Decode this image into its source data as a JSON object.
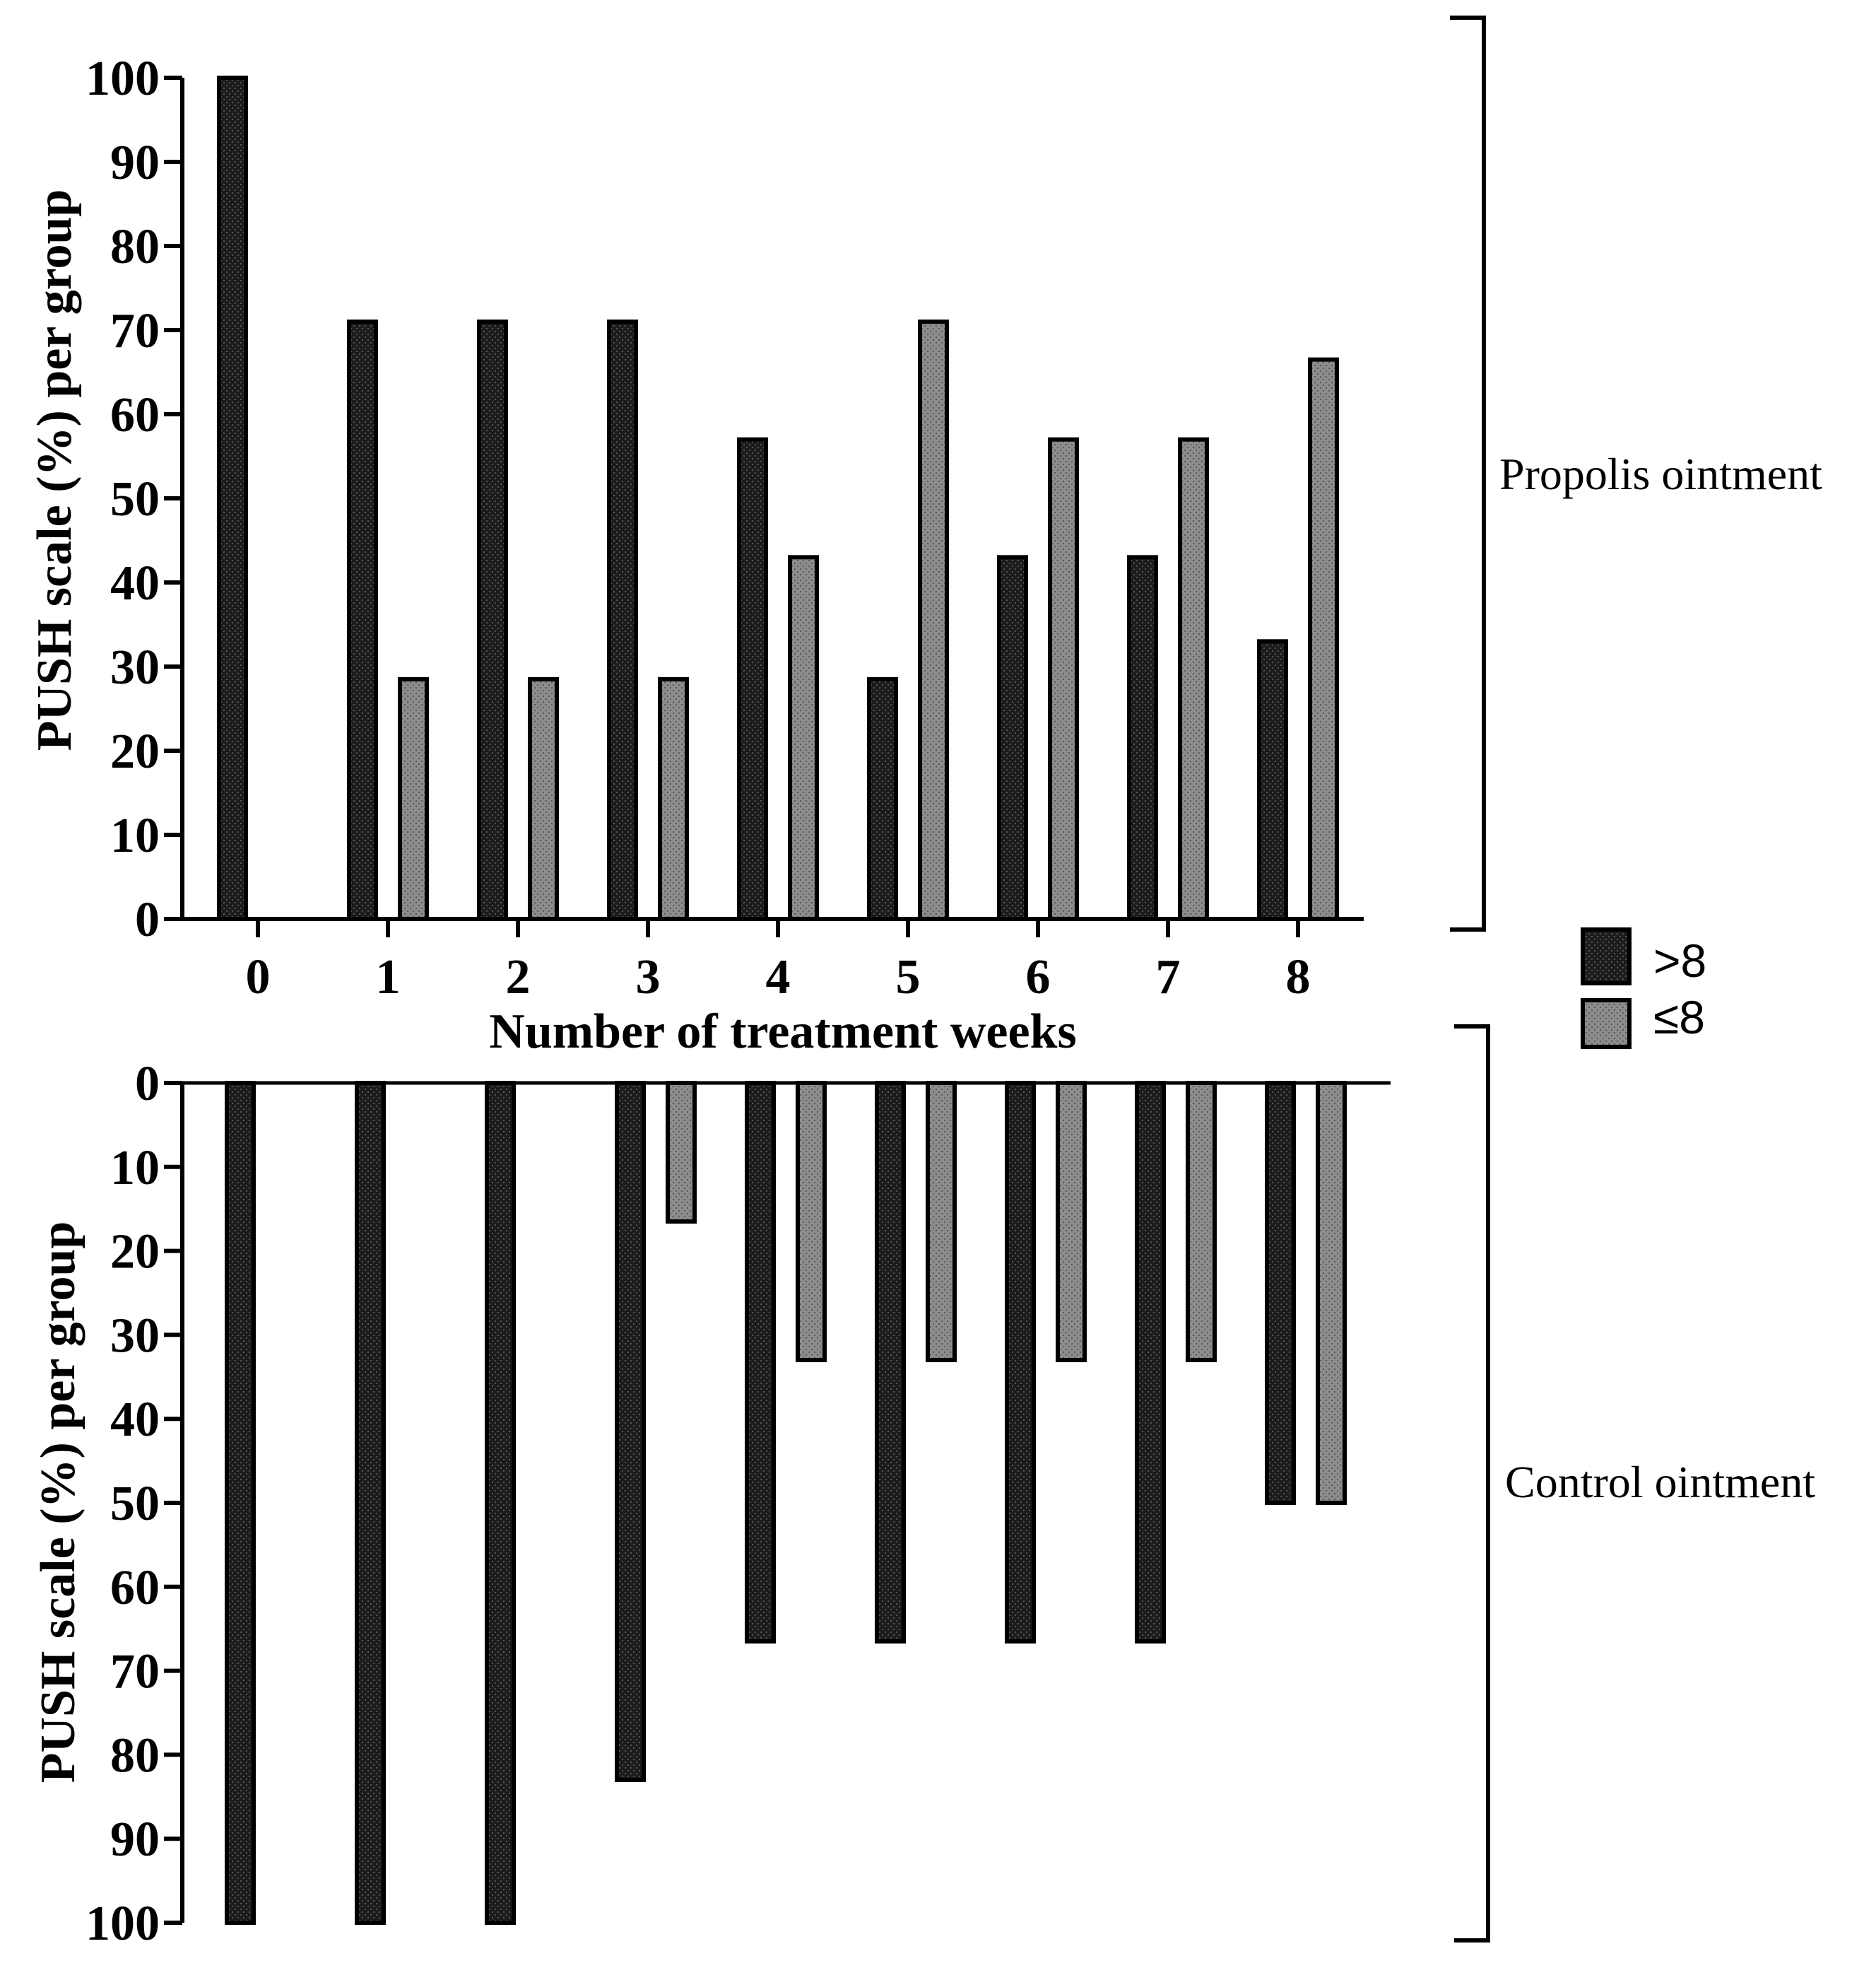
{
  "colors": {
    "dark_fill": "#1c1c1c",
    "light_fill": "#8c8c8c",
    "stroke": "#000000"
  },
  "legend": [
    {
      "label": ">8",
      "series": "dark"
    },
    {
      "label": "≤8",
      "series": "light"
    }
  ],
  "chart_data": [
    {
      "type": "bar",
      "panel": "top",
      "group_label": "Propolis ointment",
      "xlabel": "Number of treatment weeks",
      "ylabel": "PUSH scale (%) per group",
      "categories": [
        "0",
        "1",
        "2",
        "3",
        "4",
        "5",
        "6",
        "7",
        "8"
      ],
      "ylim": [
        0,
        100
      ],
      "yticks": [
        "0",
        "10",
        "20",
        "30",
        "40",
        "50",
        "60",
        "70",
        "80",
        "90",
        "100"
      ],
      "series": [
        {
          "name": ">8",
          "values": [
            100,
            71,
            71,
            71,
            57,
            28.5,
            43,
            43,
            33
          ]
        },
        {
          "name": "≤8",
          "values": [
            0,
            28.5,
            28.5,
            28.5,
            43,
            71,
            57,
            57,
            66.5
          ]
        }
      ]
    },
    {
      "type": "bar",
      "panel": "bottom",
      "orientation": "inverted",
      "group_label": "Control ointment",
      "ylabel": "PUSH scale (%) per group",
      "categories": [
        "0",
        "1",
        "2",
        "3",
        "4",
        "5",
        "6",
        "7",
        "8"
      ],
      "ylim": [
        0,
        100
      ],
      "yticks": [
        "0",
        "10",
        "20",
        "30",
        "40",
        "50",
        "60",
        "70",
        "80",
        "90",
        "100"
      ],
      "series": [
        {
          "name": ">8",
          "values": [
            100,
            100,
            100,
            83,
            66.5,
            66.5,
            66.5,
            66.5,
            50
          ]
        },
        {
          "name": "≤8",
          "values": [
            0,
            0,
            0,
            16.5,
            33,
            33,
            33,
            33,
            50
          ]
        }
      ]
    }
  ]
}
